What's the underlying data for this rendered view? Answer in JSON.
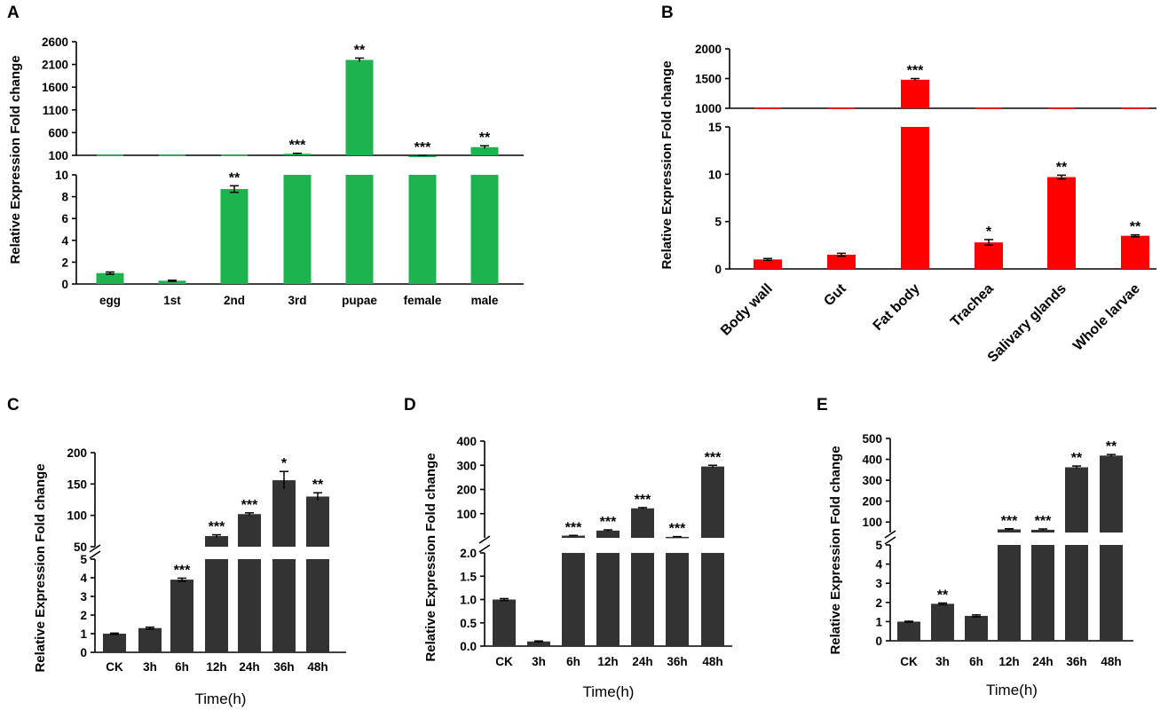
{
  "colors": {
    "A": "#1db34f",
    "B": "#ff0000",
    "C": "#333333",
    "D": "#333333",
    "E": "#333333"
  },
  "chart_data": [
    {
      "id": "A",
      "type": "bar",
      "ylabel": "Relative Expression Fold change",
      "xlabel": "",
      "categories": [
        "egg",
        "1st",
        "2nd",
        "3rd",
        "pupae",
        "female",
        "male"
      ],
      "values": [
        1.0,
        0.3,
        8.7,
        135,
        2200,
        90,
        280
      ],
      "errors": [
        0.1,
        0.05,
        0.3,
        10,
        40,
        8,
        30
      ],
      "significance": [
        "",
        "",
        "**",
        "***",
        "**",
        "***",
        "**"
      ],
      "lower_axis": {
        "ylim": [
          0,
          10
        ],
        "ticks": [
          "0",
          "2",
          "4",
          "6",
          "8",
          "10"
        ]
      },
      "upper_axis": {
        "ylim": [
          100,
          2600
        ],
        "ticks": [
          "100",
          "600",
          "1100",
          "1600",
          "2100",
          "2600"
        ]
      }
    },
    {
      "id": "B",
      "type": "bar",
      "ylabel": "Relative Expression Fold change",
      "xlabel": "",
      "categories": [
        "Body wall",
        "Gut",
        "Fat body",
        "Trachea",
        "Salivary glands",
        "Whole larvae"
      ],
      "values": [
        1.0,
        1.5,
        1480,
        2.8,
        9.7,
        3.5
      ],
      "errors": [
        0.1,
        0.15,
        20,
        0.3,
        0.2,
        0.1
      ],
      "significance": [
        "",
        "",
        "***",
        "*",
        "**",
        "**"
      ],
      "lower_axis": {
        "ylim": [
          0,
          15
        ],
        "ticks": [
          "0",
          "5",
          "10",
          "15"
        ]
      },
      "upper_axis": {
        "ylim": [
          1000,
          2000
        ],
        "ticks": [
          "1000",
          "1500",
          "2000"
        ]
      }
    },
    {
      "id": "C",
      "type": "bar",
      "ylabel": "Relative Expression Fold change",
      "xlabel": "Time(h)",
      "categories": [
        "CK",
        "3h",
        "6h",
        "12h",
        "24h",
        "36h",
        "48h"
      ],
      "values": [
        1.0,
        1.3,
        3.9,
        67,
        102,
        156,
        130
      ],
      "errors": [
        0.03,
        0.05,
        0.08,
        2,
        2,
        14,
        6
      ],
      "significance": [
        "",
        "",
        "***",
        "***",
        "***",
        "*",
        "**"
      ],
      "lower_axis": {
        "ylim": [
          0,
          5
        ],
        "ticks": [
          "0",
          "1",
          "2",
          "3",
          "4",
          "5"
        ]
      },
      "upper_axis": {
        "ylim": [
          50,
          200
        ],
        "ticks": [
          "50",
          "100",
          "150",
          "200"
        ]
      }
    },
    {
      "id": "D",
      "type": "bar",
      "ylabel": "Relative Expression Fold change",
      "xlabel": "Time(h)",
      "categories": [
        "CK",
        "3h",
        "6h",
        "12h",
        "24h",
        "36h",
        "48h"
      ],
      "values": [
        1.0,
        0.1,
        9,
        30,
        122,
        4,
        295
      ],
      "errors": [
        0.02,
        0.01,
        1,
        3,
        3,
        1,
        5
      ],
      "significance": [
        "",
        "",
        "***",
        "***",
        "***",
        "***",
        "***"
      ],
      "lower_axis": {
        "ylim": [
          0,
          2
        ],
        "ticks": [
          "0.0",
          "0.5",
          "1.0",
          "1.5",
          "2.0"
        ]
      },
      "upper_axis": {
        "ylim": [
          0,
          400
        ],
        "ticks": [
          "100",
          "200",
          "300",
          "400"
        ]
      }
    },
    {
      "id": "E",
      "type": "bar",
      "ylabel": "Relative Expression Fold change",
      "xlabel": "Time(h)",
      "categories": [
        "CK",
        "3h",
        "6h",
        "12h",
        "24h",
        "36h",
        "48h"
      ],
      "values": [
        1.0,
        1.93,
        1.3,
        65,
        63,
        362,
        418
      ],
      "errors": [
        0.02,
        0.04,
        0.05,
        3,
        4,
        6,
        5
      ],
      "significance": [
        "",
        "**",
        "",
        "***",
        "***",
        "**",
        "**"
      ],
      "lower_axis": {
        "ylim": [
          0,
          5
        ],
        "ticks": [
          "0",
          "1",
          "2",
          "3",
          "4",
          "5"
        ]
      },
      "upper_axis": {
        "ylim": [
          50,
          500
        ],
        "ticks": [
          "100",
          "200",
          "300",
          "400",
          "500"
        ]
      }
    }
  ]
}
